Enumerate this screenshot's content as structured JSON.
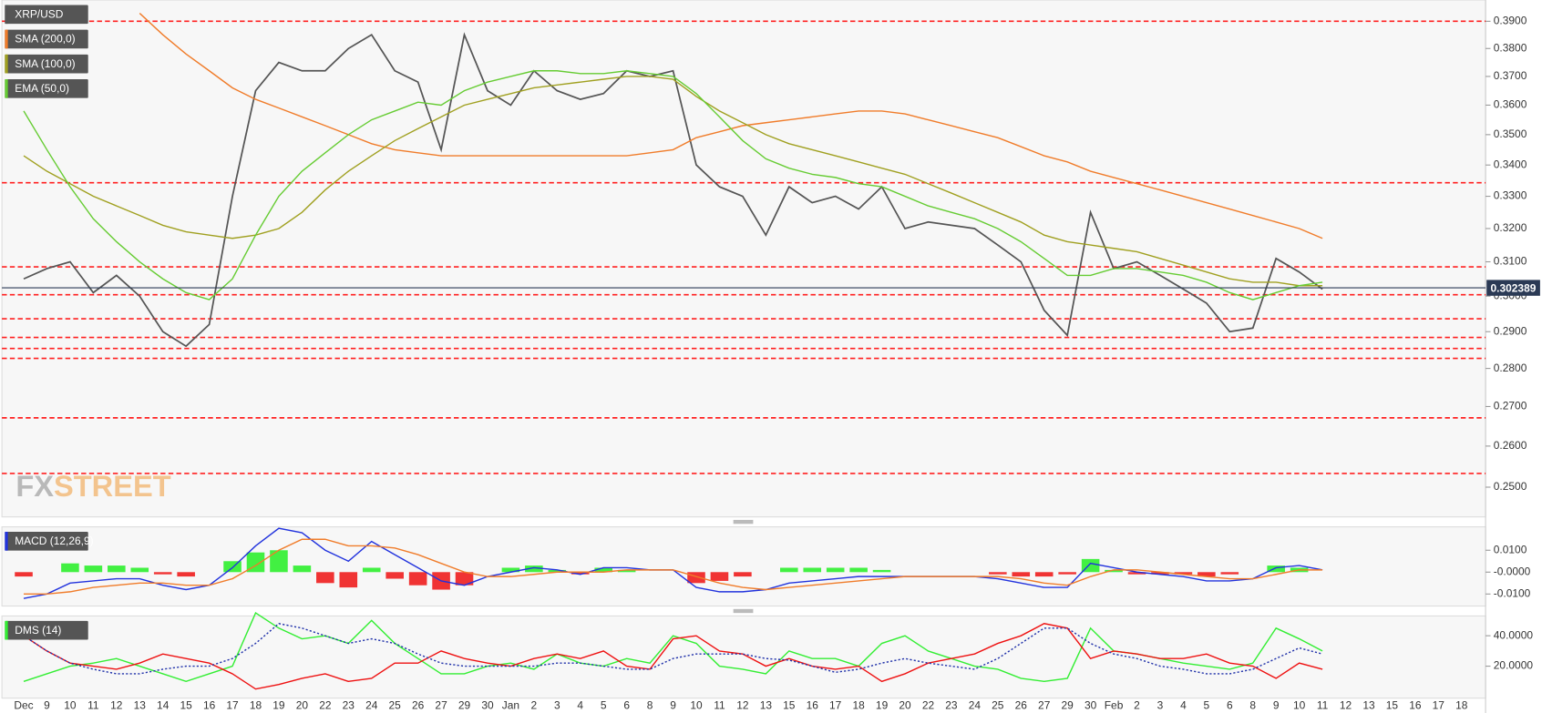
{
  "chart_data": [
    {
      "type": "line",
      "title": "XRP/USD",
      "log": true,
      "legend": "top-left",
      "watermark": [
        "FX",
        "STREET"
      ],
      "categories": [
        "Dec",
        "9",
        "10",
        "11",
        "12",
        "13",
        "14",
        "15",
        "16",
        "17",
        "18",
        "19",
        "20",
        "22",
        "23",
        "24",
        "25",
        "26",
        "27",
        "29",
        "30",
        "Jan",
        "2",
        "3",
        "4",
        "5",
        "6",
        "8",
        "9",
        "10",
        "11",
        "12",
        "13",
        "15",
        "16",
        "17",
        "18",
        "19",
        "20",
        "22",
        "23",
        "24",
        "25",
        "26",
        "27",
        "29",
        "30",
        "Feb",
        "2",
        "3",
        "4",
        "5",
        "6",
        "8",
        "9",
        "10",
        "11",
        "12",
        "13",
        "15",
        "16",
        "17",
        "18"
      ],
      "ylim": [
        0.243,
        0.398
      ],
      "yticks": [
        {
          "value": 0.39,
          "label": "0.3900"
        },
        {
          "value": 0.38,
          "label": "0.3800"
        },
        {
          "value": 0.37,
          "label": "0.3700"
        },
        {
          "value": 0.36,
          "label": "0.3600"
        },
        {
          "value": 0.35,
          "label": "0.3500"
        },
        {
          "value": 0.34,
          "label": "0.3400"
        },
        {
          "value": 0.33,
          "label": "0.3300"
        },
        {
          "value": 0.32,
          "label": "0.3200"
        },
        {
          "value": 0.31,
          "label": "0.3100"
        },
        {
          "value": 0.3,
          "label": "0.3000"
        },
        {
          "value": 0.29,
          "label": "0.2900"
        },
        {
          "value": 0.28,
          "label": "0.2800"
        },
        {
          "value": 0.27,
          "label": "0.2700"
        },
        {
          "value": 0.26,
          "label": "0.2600"
        },
        {
          "value": 0.25,
          "label": "0.2500"
        }
      ],
      "levels": [
        0.39,
        0.3343,
        0.3085,
        0.3004,
        0.2936,
        0.2884,
        0.2854,
        0.2827,
        0.2671,
        0.2533
      ],
      "level_color": "#ff2020",
      "current_price": 0.302389,
      "current_color": "#2b3a55",
      "series": [
        {
          "color": "#555555",
          "values": [
            0.305,
            0.308,
            0.31,
            0.301,
            0.306,
            0.3,
            0.29,
            0.286,
            0.292,
            0.33,
            0.365,
            0.375,
            0.372,
            0.372,
            0.38,
            0.385,
            0.372,
            0.368,
            0.345,
            0.385,
            0.365,
            0.36,
            0.372,
            0.365,
            0.362,
            0.364,
            0.372,
            0.37,
            0.372,
            0.34,
            0.333,
            0.33,
            0.318,
            0.333,
            0.328,
            0.33,
            0.326,
            0.333,
            0.32,
            0.322,
            0.321,
            0.32,
            0.315,
            0.31,
            0.296,
            0.289,
            0.325,
            0.308,
            0.31,
            0.306,
            0.302,
            0.298,
            0.29,
            0.291,
            0.311,
            0.307,
            0.302,
            null,
            null,
            null,
            null,
            null,
            null
          ]
        },
        {
          "name": "SMA (200,0)",
          "color": "#f07c2a",
          "values": [
            null,
            null,
            null,
            null,
            null,
            0.393,
            0.385,
            0.378,
            0.372,
            0.366,
            0.362,
            0.359,
            0.356,
            0.353,
            0.35,
            0.347,
            0.345,
            0.344,
            0.343,
            0.343,
            0.343,
            0.343,
            0.343,
            0.343,
            0.343,
            0.343,
            0.343,
            0.344,
            0.345,
            0.349,
            0.351,
            0.353,
            0.354,
            0.355,
            0.356,
            0.357,
            0.358,
            0.358,
            0.357,
            0.355,
            0.353,
            0.351,
            0.349,
            0.346,
            0.343,
            0.341,
            0.338,
            0.336,
            0.334,
            0.332,
            0.33,
            0.328,
            0.326,
            0.324,
            0.322,
            0.32,
            0.317,
            null,
            null,
            null,
            null,
            null,
            null
          ]
        },
        {
          "name": "SMA (100,0)",
          "color": "#a0a020",
          "values": [
            0.343,
            0.338,
            0.334,
            0.33,
            0.327,
            0.324,
            0.321,
            0.319,
            0.318,
            0.317,
            0.318,
            0.32,
            0.325,
            0.332,
            0.338,
            0.343,
            0.348,
            0.352,
            0.356,
            0.36,
            0.362,
            0.364,
            0.366,
            0.367,
            0.368,
            0.369,
            0.37,
            0.37,
            0.369,
            0.363,
            0.358,
            0.354,
            0.35,
            0.347,
            0.345,
            0.343,
            0.341,
            0.339,
            0.337,
            0.334,
            0.331,
            0.328,
            0.325,
            0.322,
            0.318,
            0.316,
            0.315,
            0.314,
            0.313,
            0.311,
            0.309,
            0.307,
            0.305,
            0.304,
            0.304,
            0.303,
            0.303,
            null,
            null,
            null,
            null,
            null,
            null
          ]
        },
        {
          "name": "EMA (50,0)",
          "color": "#66cc33",
          "values": [
            0.358,
            0.345,
            0.333,
            0.323,
            0.316,
            0.31,
            0.305,
            0.301,
            0.299,
            0.305,
            0.318,
            0.33,
            0.338,
            0.344,
            0.35,
            0.355,
            0.358,
            0.361,
            0.36,
            0.365,
            0.368,
            0.37,
            0.372,
            0.372,
            0.371,
            0.371,
            0.372,
            0.371,
            0.37,
            0.364,
            0.356,
            0.348,
            0.342,
            0.339,
            0.337,
            0.336,
            0.334,
            0.333,
            0.33,
            0.327,
            0.325,
            0.323,
            0.32,
            0.316,
            0.311,
            0.306,
            0.306,
            0.308,
            0.308,
            0.307,
            0.306,
            0.304,
            0.301,
            0.299,
            0.301,
            0.303,
            0.304,
            null,
            null,
            null,
            null,
            null,
            null
          ]
        }
      ]
    },
    {
      "type": "line",
      "title": "MACD (12,26,9)",
      "ylim": [
        -0.0155,
        0.0207
      ],
      "yticks": [
        {
          "value": 0.01,
          "label": "0.0100"
        },
        {
          "value": 0,
          "label": "-0.0000"
        },
        {
          "value": -0.01,
          "label": "-0.0100"
        }
      ],
      "histogram": {
        "up_color": "#22ee22",
        "down_color": "#ee1111",
        "values": [
          -0.002,
          0,
          0.004,
          0.003,
          0.003,
          0.002,
          -0.001,
          -0.002,
          0,
          0.005,
          0.009,
          0.01,
          0.003,
          -0.005,
          -0.007,
          0.002,
          -0.003,
          -0.006,
          -0.008,
          -0.006,
          0,
          0.002,
          0.003,
          0.001,
          -0.001,
          0.002,
          0.001,
          0,
          0,
          -0.005,
          -0.004,
          -0.002,
          0,
          0.002,
          0.002,
          0.002,
          0.002,
          0.001,
          0,
          0,
          0,
          0,
          -0.001,
          -0.002,
          -0.002,
          -0.001,
          0.006,
          0.001,
          -0.001,
          -0.001,
          -0.001,
          -0.002,
          -0.001,
          0,
          0.003,
          0.002,
          0,
          null,
          null,
          null,
          null,
          null,
          null
        ]
      },
      "series": [
        {
          "color": "#2233dd",
          "values": [
            -0.012,
            -0.01,
            -0.005,
            -0.004,
            -0.003,
            -0.003,
            -0.006,
            -0.008,
            -0.006,
            0.002,
            0.012,
            0.02,
            0.018,
            0.01,
            0.005,
            0.014,
            0.008,
            0.002,
            -0.004,
            -0.006,
            -0.002,
            0.0,
            0.002,
            0.001,
            -0.001,
            0.002,
            0.002,
            0.001,
            0.001,
            -0.007,
            -0.009,
            -0.009,
            -0.008,
            -0.005,
            -0.004,
            -0.003,
            -0.002,
            -0.002,
            -0.002,
            -0.002,
            -0.002,
            -0.002,
            -0.003,
            -0.005,
            -0.007,
            -0.007,
            0.004,
            0.002,
            0.0,
            -0.001,
            -0.002,
            -0.004,
            -0.004,
            -0.003,
            0.002,
            0.003,
            0.001,
            null,
            null,
            null,
            null,
            null,
            null
          ]
        },
        {
          "color": "#f07c2a",
          "values": [
            -0.01,
            -0.01,
            -0.009,
            -0.007,
            -0.006,
            -0.005,
            -0.005,
            -0.006,
            -0.006,
            -0.003,
            0.003,
            0.01,
            0.015,
            0.015,
            0.012,
            0.012,
            0.011,
            0.008,
            0.004,
            0.0,
            -0.002,
            -0.002,
            -0.001,
            0.0,
            0.0,
            0.0,
            0.001,
            0.001,
            0.001,
            -0.002,
            -0.005,
            -0.007,
            -0.008,
            -0.007,
            -0.006,
            -0.005,
            -0.004,
            -0.003,
            -0.002,
            -0.002,
            -0.002,
            -0.002,
            -0.002,
            -0.003,
            -0.005,
            -0.006,
            -0.002,
            0.001,
            0.001,
            0.0,
            -0.001,
            -0.002,
            -0.003,
            -0.003,
            -0.001,
            0.001,
            0.001,
            null,
            null,
            null,
            null,
            null,
            null
          ]
        }
      ]
    },
    {
      "type": "line",
      "title": "DMS (14)",
      "ylim": [
        -1,
        53
      ],
      "yticks": [
        {
          "value": 40,
          "label": "40.0000"
        },
        {
          "value": 20,
          "label": "20.0000"
        }
      ],
      "series": [
        {
          "color": "#33ee33",
          "values": [
            10,
            15,
            20,
            22,
            25,
            20,
            15,
            10,
            15,
            20,
            55,
            45,
            38,
            40,
            35,
            50,
            35,
            25,
            15,
            15,
            20,
            22,
            18,
            28,
            22,
            20,
            25,
            22,
            40,
            35,
            20,
            18,
            15,
            30,
            25,
            25,
            20,
            35,
            40,
            30,
            25,
            20,
            18,
            12,
            10,
            12,
            45,
            30,
            28,
            25,
            22,
            20,
            18,
            22,
            45,
            38,
            30,
            null,
            null,
            null,
            null,
            null,
            null
          ]
        },
        {
          "color": "#ee1111",
          "values": [
            40,
            30,
            22,
            20,
            18,
            22,
            28,
            25,
            22,
            15,
            5,
            8,
            12,
            15,
            10,
            12,
            22,
            22,
            30,
            25,
            22,
            20,
            25,
            28,
            25,
            30,
            20,
            18,
            38,
            40,
            30,
            28,
            20,
            25,
            20,
            18,
            20,
            10,
            15,
            22,
            25,
            28,
            35,
            40,
            48,
            45,
            25,
            30,
            28,
            25,
            25,
            28,
            22,
            20,
            12,
            22,
            18,
            null,
            null,
            null,
            null,
            null,
            null
          ]
        },
        {
          "color": "#2233aa",
          "dash": true,
          "values": [
            40,
            30,
            22,
            18,
            15,
            15,
            18,
            20,
            20,
            25,
            35,
            48,
            45,
            40,
            35,
            38,
            35,
            28,
            22,
            20,
            20,
            20,
            20,
            22,
            22,
            20,
            18,
            18,
            25,
            28,
            28,
            28,
            25,
            24,
            20,
            16,
            18,
            22,
            25,
            22,
            20,
            18,
            25,
            35,
            45,
            45,
            35,
            28,
            25,
            20,
            18,
            15,
            15,
            18,
            25,
            32,
            28,
            null,
            null,
            null,
            null,
            null,
            null
          ]
        }
      ]
    }
  ]
}
